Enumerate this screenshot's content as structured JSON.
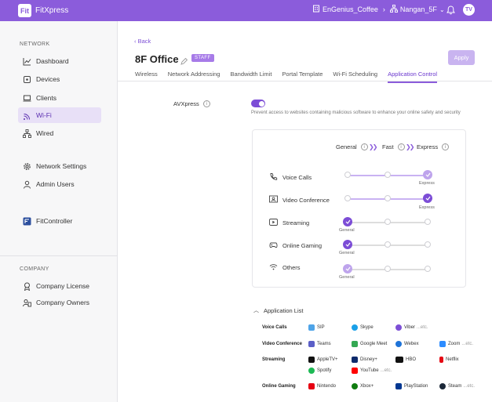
{
  "topbar": {
    "app_name": "FitXpress",
    "logo_text": "Fit",
    "site": "EnGenius_Coffee",
    "location": "Nangan_5F",
    "avatar_initials": "TV"
  },
  "sidebar": {
    "network_section": "NETWORK",
    "items": [
      "Dashboard",
      "Devices",
      "Clients",
      "Wi-Fi",
      "Wired",
      "Network Settings",
      "Admin Users",
      "FitController"
    ],
    "company_section": "COMPANY",
    "company_items": [
      "Company License",
      "Company Owners"
    ]
  },
  "header": {
    "back_label": "Back",
    "title": "8F Office",
    "badge": "STAFF",
    "apply_label": "Apply"
  },
  "tabs": [
    "Wireless",
    "Network Addressing",
    "Bandwidth Limit",
    "Portal Template",
    "Wi-Fi Scheduling",
    "Application Control"
  ],
  "avx": {
    "label": "AVXpress",
    "description": "Prevent access to websites containing malicious software to enhance your online safety and security",
    "enabled": true
  },
  "priority": {
    "levels": [
      "General",
      "Fast",
      "Express"
    ],
    "rows": [
      {
        "label": "Voice Calls",
        "level": "Express"
      },
      {
        "label": "Video Conference",
        "level": "Express"
      },
      {
        "label": "Streaming",
        "level": "General"
      },
      {
        "label": "Online Gaming",
        "level": "General"
      },
      {
        "label": "Others",
        "level": "General"
      }
    ]
  },
  "applist": {
    "title": "Application List",
    "etc": "...etc.",
    "categories": [
      {
        "name": "Voice Calls",
        "apps": [
          "SIP",
          "Skype",
          "Viber"
        ]
      },
      {
        "name": "Video Conference",
        "apps": [
          "Teams",
          "Google Meet",
          "Webex",
          "Zoom"
        ]
      },
      {
        "name": "Streaming",
        "apps": [
          "AppleTV+",
          "Disney+",
          "HBO",
          "Netflix",
          "Spotify",
          "YouTube"
        ]
      },
      {
        "name": "Online Gaming",
        "apps": [
          "Nintendo",
          "Xbox+",
          "PlayStation",
          "Steam"
        ]
      }
    ]
  },
  "colors": {
    "accent": "#8b5cdb",
    "active_bg": "#e8e0f7"
  }
}
